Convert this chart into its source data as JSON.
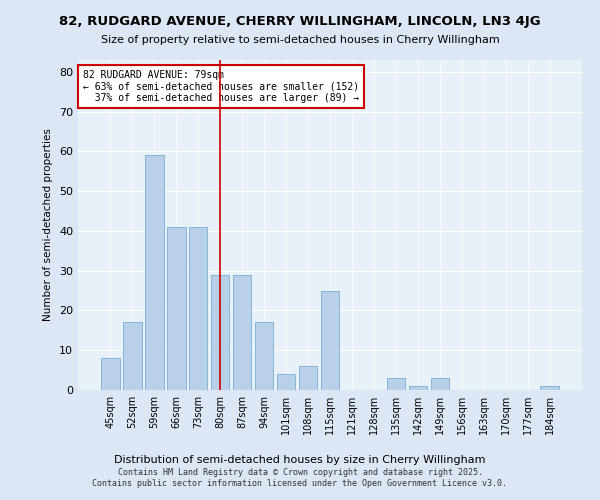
{
  "title": "82, RUDGARD AVENUE, CHERRY WILLINGHAM, LINCOLN, LN3 4JG",
  "subtitle": "Size of property relative to semi-detached houses in Cherry Willingham",
  "xlabel": "Distribution of semi-detached houses by size in Cherry Willingham",
  "ylabel": "Number of semi-detached properties",
  "categories": [
    "45sqm",
    "52sqm",
    "59sqm",
    "66sqm",
    "73sqm",
    "80sqm",
    "87sqm",
    "94sqm",
    "101sqm",
    "108sqm",
    "115sqm",
    "121sqm",
    "128sqm",
    "135sqm",
    "142sqm",
    "149sqm",
    "156sqm",
    "163sqm",
    "170sqm",
    "177sqm",
    "184sqm"
  ],
  "values": [
    8,
    17,
    59,
    41,
    41,
    29,
    29,
    17,
    4,
    6,
    25,
    0,
    0,
    3,
    1,
    3,
    0,
    0,
    0,
    0,
    1
  ],
  "bar_color": "#b8d0e8",
  "bar_edge_color": "#7aafd4",
  "highlight_index": 5,
  "annotation_title": "82 RUDGARD AVENUE: 79sqm",
  "annotation_line1": "← 63% of semi-detached houses are smaller (152)",
  "annotation_line2": "  37% of semi-detached houses are larger (89) →",
  "annotation_box_color": "#ffffff",
  "annotation_box_edge_color": "#cc0000",
  "ylim": [
    0,
    83
  ],
  "footer1": "Contains HM Land Registry data © Crown copyright and database right 2025.",
  "footer2": "Contains public sector information licensed under the Open Government Licence v3.0.",
  "bg_color": "#dce6f5",
  "plot_bg_color": "#e8f0f8"
}
